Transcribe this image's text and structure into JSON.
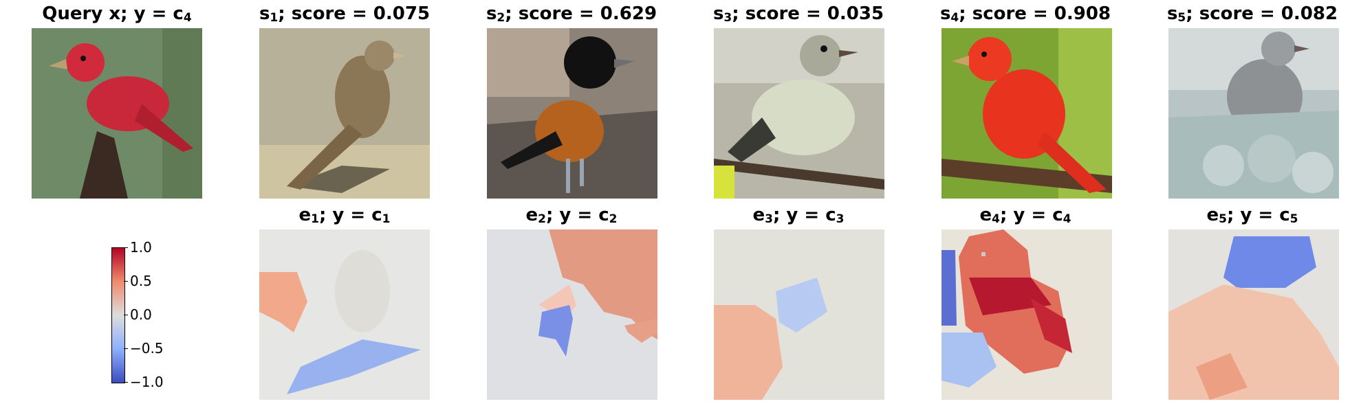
{
  "top_row": [
    {
      "label_main": "Query x; y = c",
      "label_sub": "4",
      "label_tail": "",
      "score": ""
    },
    {
      "label_main": "s",
      "label_sub": "1",
      "label_tail": "; score = 0.075"
    },
    {
      "label_main": "s",
      "label_sub": "2",
      "label_tail": "; score = 0.629"
    },
    {
      "label_main": "s",
      "label_sub": "3",
      "label_tail": "; score = 0.035"
    },
    {
      "label_main": "s",
      "label_sub": "4",
      "label_tail": "; score = 0.908"
    },
    {
      "label_main": "s",
      "label_sub": "5",
      "label_tail": "; score = 0.082"
    }
  ],
  "bottom_row": [
    {
      "label_main": "e",
      "label_sub": "1",
      "label_mid": "; y = c",
      "label_sub2": "1"
    },
    {
      "label_main": "e",
      "label_sub": "2",
      "label_mid": "; y = c",
      "label_sub2": "2"
    },
    {
      "label_main": "e",
      "label_sub": "3",
      "label_mid": "; y = c",
      "label_sub2": "3"
    },
    {
      "label_main": "e",
      "label_sub": "4",
      "label_mid": "; y = c",
      "label_sub2": "4"
    },
    {
      "label_main": "e",
      "label_sub": "5",
      "label_mid": "; y = c",
      "label_sub2": "5"
    }
  ],
  "colorbar": {
    "ticks": [
      "1.0",
      "0.5",
      "0.0",
      "−0.5",
      "−1.0"
    ],
    "colormap": "coolwarm",
    "colors": {
      "high": "#b40426",
      "mid": "#dddddd",
      "low": "#3b4cc0"
    }
  }
}
